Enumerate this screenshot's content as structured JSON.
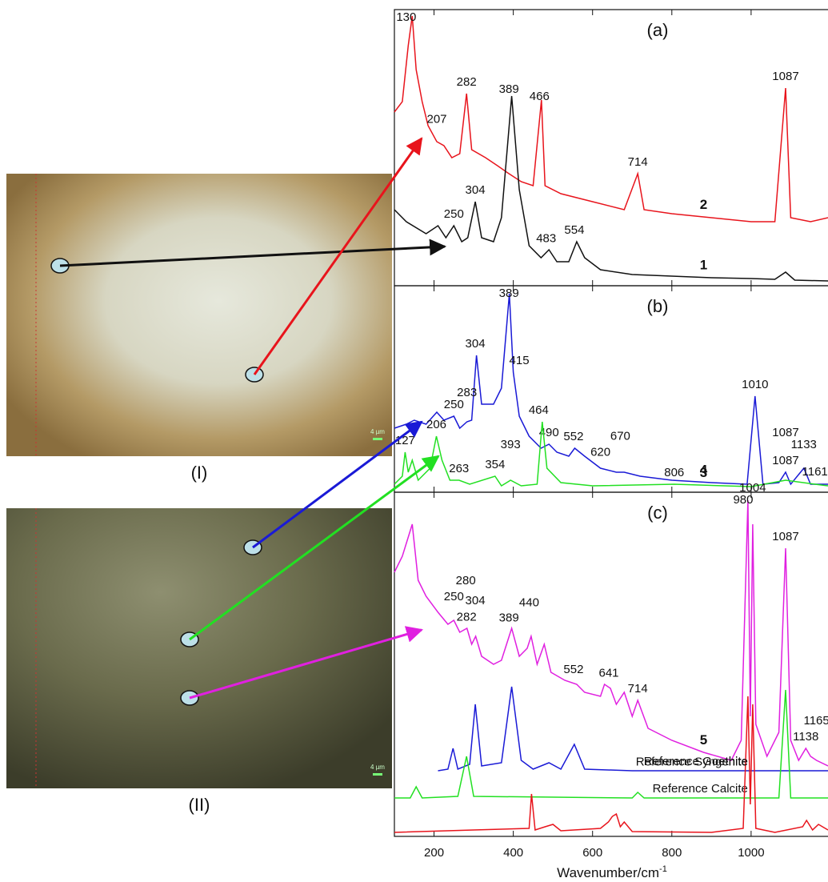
{
  "figure": {
    "images": [
      {
        "label": "(I)",
        "scale": "4 µm"
      },
      {
        "label": "(II)",
        "scale": "4 µm"
      }
    ]
  },
  "chart_data": [
    {
      "type": "line",
      "title": "(a)",
      "ylim": [
        0,
        345
      ],
      "xlim": [
        100,
        1194
      ],
      "xticks": [
        200,
        400,
        600,
        800,
        1000
      ],
      "series": [
        {
          "name": "2",
          "color": "#e8141c",
          "x": [
            100,
            120,
            135,
            145,
            155,
            170,
            185,
            207,
            225,
            245,
            265,
            282,
            295,
            330,
            360,
            389,
            420,
            450,
            471,
            480,
            520,
            600,
            680,
            714,
            730,
            800,
            900,
            1000,
            1060,
            1087,
            1100,
            1150,
            1194
          ],
          "values": [
            217,
            230,
            300,
            337,
            270,
            230,
            200,
            180,
            175,
            160,
            165,
            240,
            170,
            160,
            150,
            140,
            130,
            125,
            232,
            125,
            115,
            105,
            95,
            140,
            95,
            90,
            85,
            80,
            80,
            247,
            85,
            80,
            85
          ],
          "peaks": [
            130,
            207,
            282,
            466,
            714,
            1087
          ]
        },
        {
          "name": "1",
          "color": "#111111",
          "x": [
            100,
            130,
            180,
            210,
            230,
            250,
            270,
            285,
            304,
            320,
            350,
            370,
            396,
            415,
            440,
            470,
            490,
            510,
            540,
            560,
            580,
            620,
            700,
            800,
            900,
            1000,
            1060,
            1087,
            1110,
            1194
          ],
          "values": [
            95,
            80,
            65,
            75,
            60,
            75,
            55,
            60,
            105,
            60,
            55,
            85,
            237,
            120,
            50,
            35,
            45,
            30,
            30,
            55,
            35,
            20,
            14,
            12,
            10,
            9,
            8,
            17,
            7,
            6
          ],
          "peaks": [
            250,
            304,
            389,
            483,
            554
          ]
        }
      ]
    },
    {
      "type": "line",
      "title": "(b)",
      "ylim": [
        0,
        258
      ],
      "xlim": [
        100,
        1194
      ],
      "xticks": [
        200,
        400,
        600,
        800,
        1000
      ],
      "series": [
        {
          "name": "4",
          "color": "#1a1ad6",
          "x": [
            100,
            130,
            150,
            180,
            207,
            225,
            250,
            265,
            283,
            295,
            307,
            320,
            350,
            370,
            390,
            400,
            415,
            440,
            470,
            490,
            510,
            540,
            555,
            580,
            620,
            660,
            680,
            720,
            800,
            900,
            990,
            1010,
            1030,
            1070,
            1087,
            1100,
            1133,
            1150,
            1194
          ],
          "values": [
            80,
            85,
            90,
            85,
            100,
            90,
            95,
            80,
            88,
            90,
            171,
            110,
            110,
            130,
            248,
            150,
            95,
            70,
            55,
            60,
            50,
            45,
            55,
            45,
            30,
            25,
            25,
            20,
            15,
            12,
            10,
            120,
            10,
            12,
            25,
            10,
            30,
            10,
            10
          ],
          "peaks": [
            250,
            283,
            304,
            389,
            415,
            490,
            552,
            620,
            670,
            1010,
            1087,
            1133
          ]
        },
        {
          "name": "3",
          "color": "#22e022",
          "x": [
            100,
            120,
            127,
            135,
            145,
            160,
            190,
            206,
            220,
            240,
            263,
            290,
            354,
            370,
            393,
            420,
            460,
            473,
            485,
            520,
            600,
            806,
            1000,
            1087,
            1161,
            1194
          ],
          "values": [
            10,
            20,
            50,
            25,
            40,
            15,
            30,
            70,
            40,
            15,
            15,
            10,
            20,
            8,
            15,
            8,
            10,
            88,
            30,
            12,
            8,
            10,
            7,
            15,
            10,
            8
          ],
          "peaks": [
            127,
            206,
            263,
            354,
            393,
            464,
            806,
            1087,
            1161
          ]
        }
      ]
    },
    {
      "type": "line",
      "title": "(c)",
      "ylim": [
        0,
        430
      ],
      "xlim": [
        100,
        1194
      ],
      "xticks": [
        200,
        400,
        600,
        800,
        1000
      ],
      "xlabel": "Wavenumber/cm",
      "xlabel_sup": "-1",
      "series": [
        {
          "name": "5",
          "color": "#e020e0",
          "x": [
            100,
            120,
            145,
            160,
            180,
            210,
            235,
            250,
            265,
            283,
            295,
            305,
            320,
            350,
            370,
            396,
            415,
            435,
            445,
            460,
            478,
            495,
            530,
            560,
            580,
            620,
            630,
            645,
            660,
            680,
            700,
            714,
            740,
            800,
            880,
            950,
            975,
            992,
            998,
            1004,
            1012,
            1040,
            1070,
            1087,
            1100,
            1120,
            1138,
            1150,
            1165,
            1194
          ],
          "values": [
            330,
            350,
            390,
            320,
            300,
            280,
            265,
            270,
            255,
            260,
            240,
            250,
            225,
            215,
            220,
            260,
            225,
            235,
            250,
            215,
            240,
            205,
            195,
            190,
            180,
            175,
            190,
            185,
            165,
            180,
            150,
            170,
            135,
            120,
            105,
            95,
            120,
            420,
            150,
            390,
            140,
            100,
            130,
            360,
            120,
            95,
            110,
            100,
            95,
            88
          ],
          "peaks": [
            282,
            250,
            280,
            304,
            389,
            440,
            552,
            641,
            714,
            980,
            1004,
            1087,
            1138,
            1165
          ]
        },
        {
          "name": "Reference Goethite",
          "color": "#1a1ad6",
          "x": [
            210,
            235,
            248,
            260,
            290,
            304,
            320,
            370,
            396,
            420,
            450,
            490,
            520,
            554,
            580,
            700,
            1194
          ],
          "values": [
            82,
            84,
            110,
            84,
            90,
            165,
            88,
            92,
            187,
            95,
            84,
            92,
            84,
            115,
            84,
            82,
            82
          ]
        },
        {
          "name": "Reference Calcite",
          "color": "#22e022",
          "x": [
            100,
            140,
            155,
            170,
            260,
            282,
            300,
            700,
            714,
            730,
            1070,
            1087,
            1100,
            1194
          ],
          "values": [
            48,
            48,
            62,
            48,
            50,
            100,
            50,
            48,
            55,
            48,
            48,
            183,
            48,
            48
          ]
        },
        {
          "name": "Reference Syngenite",
          "color": "#e8141c",
          "x": [
            100,
            300,
            440,
            446,
            455,
            480,
            500,
            520,
            620,
            640,
            650,
            660,
            670,
            680,
            700,
            900,
            980,
            992,
            998,
            1004,
            1012,
            1060,
            1130,
            1140,
            1155,
            1170,
            1194
          ],
          "values": [
            5,
            8,
            10,
            53,
            8,
            12,
            15,
            7,
            10,
            18,
            25,
            28,
            12,
            18,
            6,
            5,
            10,
            175,
            40,
            165,
            10,
            5,
            12,
            20,
            8,
            15,
            8
          ]
        }
      ]
    }
  ]
}
